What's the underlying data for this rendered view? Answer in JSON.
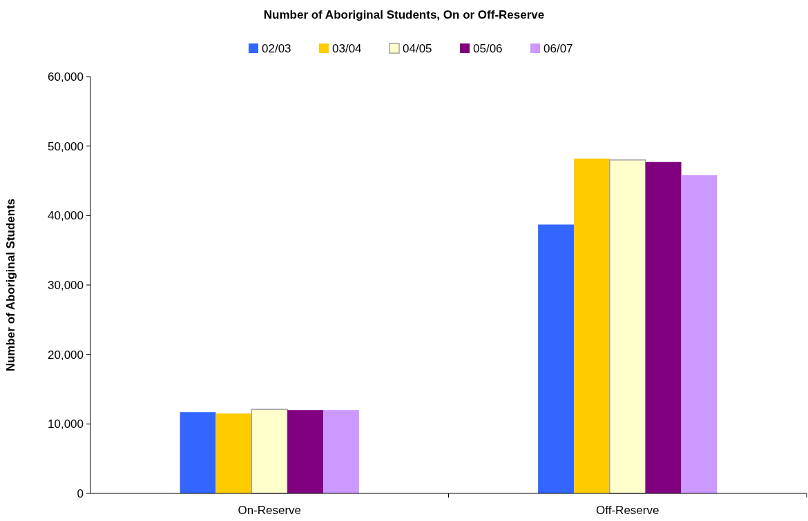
{
  "chart_data": {
    "type": "bar",
    "title": "Number of Aboriginal Students, On or Off-Reserve",
    "ylabel": "Number of Aboriginal Students",
    "categories": [
      "On-Reserve",
      "Off-Reserve"
    ],
    "series": [
      {
        "name": "02/03",
        "color": "#3366ff",
        "values": [
          11700,
          38700
        ]
      },
      {
        "name": "03/04",
        "color": "#ffcc00",
        "values": [
          11500,
          48200
        ]
      },
      {
        "name": "04/05",
        "color": "#ffffcc",
        "values": [
          12100,
          48000
        ]
      },
      {
        "name": "05/06",
        "color": "#800080",
        "values": [
          12000,
          47700
        ]
      },
      {
        "name": "06/07",
        "color": "#cc99ff",
        "values": [
          12000,
          45800
        ]
      }
    ],
    "ylim": [
      0,
      60000
    ],
    "yticks": [
      {
        "value": 0,
        "label": "0"
      },
      {
        "value": 10000,
        "label": "10,000"
      },
      {
        "value": 20000,
        "label": "20,000"
      },
      {
        "value": 30000,
        "label": "30,000"
      },
      {
        "value": 40000,
        "label": "40,000"
      },
      {
        "value": 50000,
        "label": "50,000"
      },
      {
        "value": 60000,
        "label": "60,000"
      }
    ],
    "grid": false,
    "legend": "top"
  }
}
